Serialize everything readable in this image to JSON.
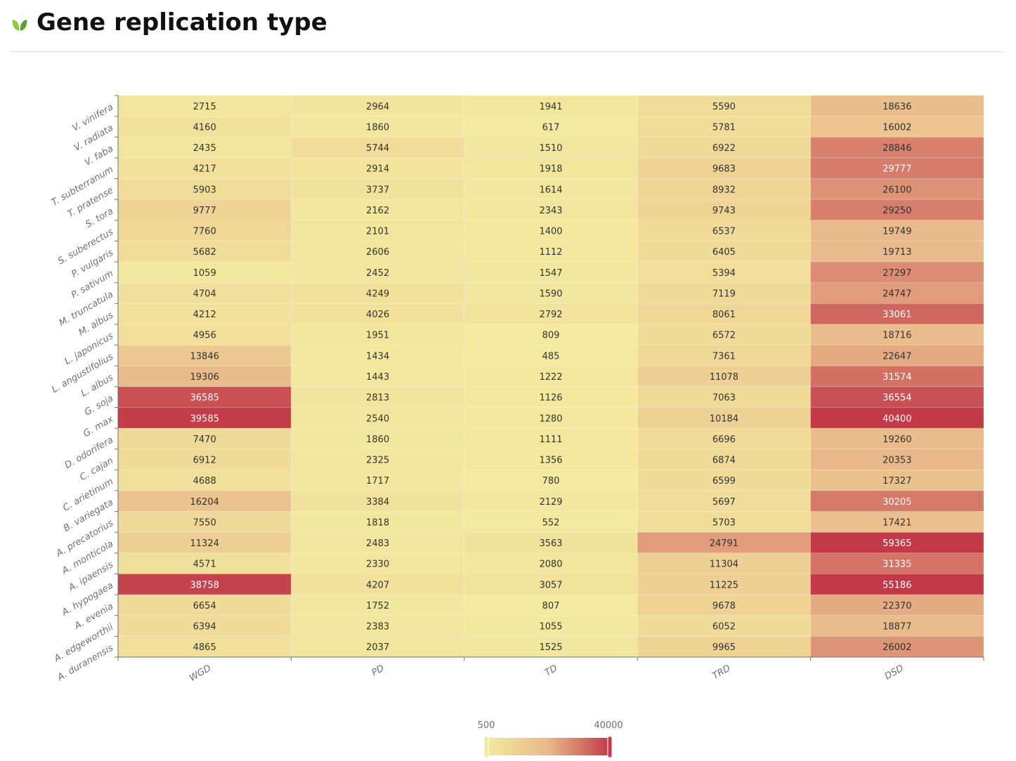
{
  "page": {
    "title": "Gene replication type",
    "title_icon": "leaf-icon"
  },
  "colors": {
    "title": "#111111",
    "divider": "#d8d8d8",
    "scale_low": "#f3ea9f",
    "scale_mid": "#e9b98a",
    "scale_high": "#c23a48",
    "axis_text": "#6e7079"
  },
  "chart_data": {
    "type": "heatmap",
    "title": "Gene replication type",
    "x_categories": [
      "WGD",
      "PD",
      "TD",
      "TRD",
      "DSD"
    ],
    "y_categories": [
      "V. vinifera",
      "V. radiata",
      "V. faba",
      "T. subterranum",
      "T. pratense",
      "S. tora",
      "S. suberectus",
      "P. vulgaris",
      "P. sativum",
      "M. truncatula",
      "M. albus",
      "L. japonicus",
      "L. angustifolius",
      "L. albus",
      "G. soja",
      "G. max",
      "D. odorifera",
      "C. cajan",
      "C. arietinum",
      "B. variegata",
      "A. precatorius",
      "A. monticola",
      "A. ipaensis",
      "A. hypogaea",
      "A. evenia",
      "A. edgeworthii",
      "A. duranensis"
    ],
    "values": [
      [
        2715,
        2964,
        1941,
        5590,
        18636
      ],
      [
        4160,
        1860,
        617,
        5781,
        16002
      ],
      [
        2435,
        5744,
        1510,
        6922,
        28846
      ],
      [
        4217,
        2914,
        1918,
        9683,
        29777
      ],
      [
        5903,
        3737,
        1614,
        8932,
        26100
      ],
      [
        9777,
        2162,
        2343,
        9743,
        29250
      ],
      [
        7760,
        2101,
        1400,
        6537,
        19749
      ],
      [
        5682,
        2606,
        1112,
        6405,
        19713
      ],
      [
        1059,
        2452,
        1547,
        5394,
        27297
      ],
      [
        4704,
        4249,
        1590,
        7119,
        24747
      ],
      [
        4212,
        4026,
        2792,
        8061,
        33061
      ],
      [
        4956,
        1951,
        809,
        6572,
        18716
      ],
      [
        13846,
        1434,
        485,
        7361,
        22647
      ],
      [
        19306,
        1443,
        1222,
        11078,
        31574
      ],
      [
        36585,
        2813,
        1126,
        7063,
        36554
      ],
      [
        39585,
        2540,
        1280,
        10184,
        40400
      ],
      [
        7470,
        1860,
        1111,
        6696,
        19260
      ],
      [
        6912,
        2325,
        1356,
        6874,
        20353
      ],
      [
        4688,
        1717,
        780,
        6599,
        17327
      ],
      [
        16204,
        3384,
        2129,
        5697,
        30205
      ],
      [
        7550,
        1818,
        552,
        5703,
        17421
      ],
      [
        11324,
        2483,
        3563,
        24791,
        59365
      ],
      [
        4571,
        2330,
        2080,
        11304,
        31335
      ],
      [
        38758,
        4207,
        3057,
        11225,
        55186
      ],
      [
        6654,
        1752,
        807,
        9678,
        22370
      ],
      [
        6394,
        2383,
        1055,
        6052,
        18877
      ],
      [
        4865,
        2037,
        1525,
        9965,
        26002
      ]
    ],
    "visual_map": {
      "min": 500,
      "max": 40000,
      "min_label": "500",
      "max_label": "40000"
    },
    "xlabel": "",
    "ylabel": "",
    "grid": false
  }
}
